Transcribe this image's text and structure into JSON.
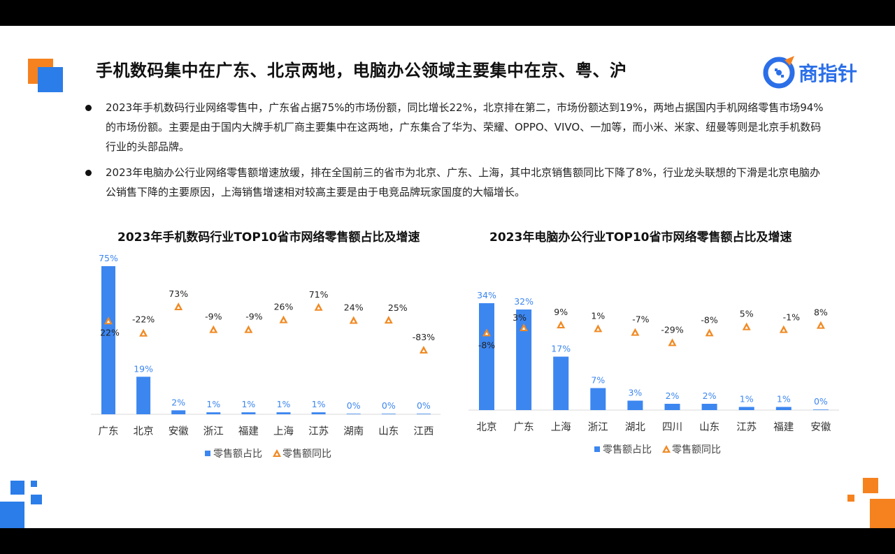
{
  "header": {
    "title": "手机数码集中在广东、北京两地，电脑办公领域主要集中在京、粤、沪",
    "logo_text": "商指针"
  },
  "bullets": [
    "2023年手机数码行业网络零售中，广东省占据75%的市场份额，同比增长22%，北京排在第二，市场份额达到19%，两地占据国内手机网络零售市场94%的市场份额。主要是由于国内大牌手机厂商主要集中在这两地，广东集合了华为、荣耀、OPPO、VIVO、一加等，而小米、米家、纽曼等则是北京手机数码行业的头部品牌。",
    "2023年电脑办公行业网络零售额增速放缓，排在全国前三的省市为北京、广东、上海，其中北京销售额同比下降了8%，行业龙头联想的下滑是北京电脑办公销售下降的主要原因，上海销售增速相对较高主要是由于电竞品牌玩家国度的大幅增长。"
  ],
  "colors": {
    "bar": "#3c86f0",
    "marker": "#f08a24",
    "accent_orange": "#f5821f",
    "accent_blue": "#2b7de9"
  },
  "chart_data": [
    {
      "type": "bar",
      "title": "2023年手机数码行业TOP10省市网络零售额占比及增速",
      "categories": [
        "广东",
        "北京",
        "安徽",
        "浙江",
        "福建",
        "上海",
        "江苏",
        "湖南",
        "山东",
        "江西"
      ],
      "series": [
        {
          "name": "零售额占比",
          "type": "bar",
          "values": [
            75,
            19,
            2,
            1,
            1,
            1,
            1,
            0,
            0,
            0
          ],
          "labels": [
            "75%",
            "19%",
            "2%",
            "1%",
            "1%",
            "1%",
            "1%",
            "0%",
            "0%",
            "0%"
          ]
        },
        {
          "name": "零售额同比",
          "type": "marker",
          "values": [
            22,
            -22,
            73,
            -9,
            -9,
            26,
            71,
            24,
            25,
            -83
          ],
          "labels": [
            "22%",
            "-22%",
            "73%",
            "-9%",
            "-9%",
            "26%",
            "71%",
            "24%",
            "25%",
            "-83%"
          ]
        }
      ],
      "legend": "bottom"
    },
    {
      "type": "bar",
      "title": "2023年电脑办公行业TOP10省市网络零售额占比及增速",
      "categories": [
        "北京",
        "广东",
        "上海",
        "浙江",
        "湖北",
        "四川",
        "山东",
        "江苏",
        "福建",
        "安徽"
      ],
      "series": [
        {
          "name": "零售额占比",
          "type": "bar",
          "values": [
            34,
            32,
            17,
            7,
            3,
            2,
            2,
            1,
            1,
            0
          ],
          "labels": [
            "34%",
            "32%",
            "17%",
            "7%",
            "3%",
            "2%",
            "2%",
            "1%",
            "1%",
            "0%"
          ]
        },
        {
          "name": "零售额同比",
          "type": "marker",
          "values": [
            -8,
            3,
            9,
            1,
            -7,
            -29,
            -8,
            5,
            -1,
            8
          ],
          "labels": [
            "-8%",
            "3%",
            "9%",
            "1%",
            "-7%",
            "-29%",
            "-8%",
            "5%",
            "-1%",
            "8%"
          ]
        }
      ],
      "legend": "bottom"
    }
  ]
}
